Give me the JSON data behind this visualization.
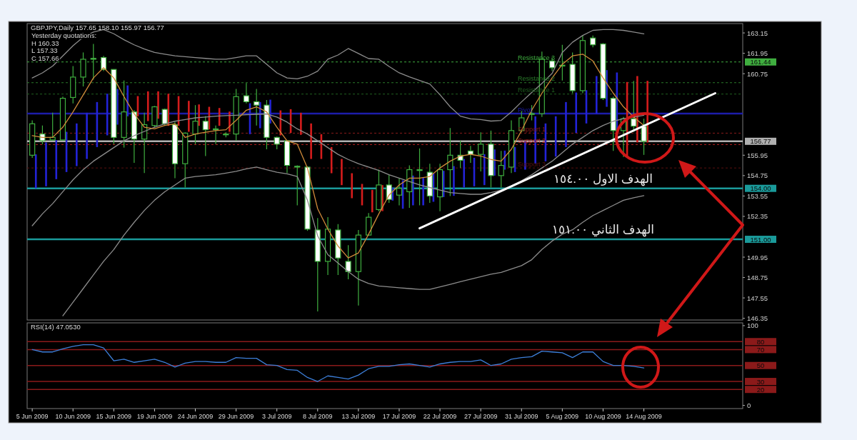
{
  "chart_data": [
    {
      "type": "candlestick",
      "title": "GBPJPY,Daily 157.65 158.10 155.97 156.77",
      "color": "#3fae3f",
      "categories": [
        "5 Jun 2009",
        null,
        null,
        null,
        "10 Jun 2009",
        null,
        null,
        null,
        "15 Jun 2009",
        null,
        null,
        null,
        "19 Jun 2009",
        null,
        null,
        null,
        "24 Jun 2009",
        null,
        null,
        null,
        "29 Jun 2009",
        null,
        null,
        null,
        "3 Jul 2009",
        null,
        null,
        null,
        "8 Jul 2009",
        null,
        null,
        null,
        "13 Jul 2009",
        null,
        null,
        null,
        "17 Jul 2009",
        null,
        null,
        null,
        "22 Jul 2009",
        null,
        null,
        null,
        "27 Jul 2009",
        null,
        null,
        null,
        "31 Jul 2009",
        null,
        null,
        null,
        "5 Aug 2009",
        null,
        null,
        null,
        "10 Aug 2009",
        null,
        null,
        null,
        "14 Aug 2009",
        null,
        null,
        null,
        null,
        null,
        null,
        null,
        null,
        null
      ],
      "ohlc": [
        [
          155.95,
          158.0,
          155.8,
          157.8
        ],
        [
          157.2,
          157.7,
          156.6,
          156.8
        ],
        [
          156.85,
          158.45,
          156.8,
          157.0
        ],
        [
          156.85,
          159.4,
          156.8,
          159.3
        ],
        [
          159.35,
          161.2,
          159.0,
          160.55
        ],
        [
          160.55,
          162.0,
          160.0,
          161.6
        ],
        [
          161.65,
          162.5,
          160.4,
          161.6
        ],
        [
          161.7,
          161.8,
          160.9,
          161.0
        ],
        [
          161.0,
          161.0,
          156.6,
          157.0
        ],
        [
          157.0,
          160.35,
          156.4,
          158.5
        ],
        [
          158.5,
          158.6,
          155.5,
          156.9
        ],
        [
          156.9,
          158.45,
          154.9,
          157.75
        ],
        [
          157.7,
          158.85,
          157.6,
          158.8
        ],
        [
          158.65,
          158.7,
          157.7,
          157.8
        ],
        [
          157.75,
          157.9,
          154.6,
          155.45
        ],
        [
          155.45,
          157.3,
          154.05,
          157.25
        ],
        [
          157.2,
          158.9,
          156.6,
          157.95
        ],
        [
          157.95,
          158.25,
          155.9,
          157.45
        ],
        [
          157.45,
          157.7,
          156.6,
          157.5
        ],
        [
          157.2,
          157.3,
          157.0,
          157.15
        ],
        [
          157.2,
          159.85,
          156.8,
          159.4
        ],
        [
          159.45,
          160.2,
          159.0,
          159.1
        ],
        [
          159.1,
          159.85,
          157.7,
          158.9
        ],
        [
          158.9,
          159.2,
          156.3,
          157.0
        ],
        [
          157.0,
          157.05,
          156.3,
          156.6
        ],
        [
          156.8,
          156.85,
          154.9,
          155.35
        ],
        [
          155.3,
          155.35,
          153.0,
          155.25
        ],
        [
          155.25,
          155.3,
          151.5,
          151.6
        ],
        [
          151.55,
          152.25,
          146.75,
          149.7
        ],
        [
          149.7,
          152.3,
          148.9,
          151.6
        ],
        [
          151.55,
          151.9,
          148.9,
          149.9
        ],
        [
          149.7,
          150.65,
          148.65,
          149.1
        ],
        [
          149.1,
          151.55,
          147.1,
          151.25
        ],
        [
          151.25,
          152.55,
          151.2,
          152.3
        ],
        [
          152.75,
          155.1,
          152.65,
          154.2
        ],
        [
          154.2,
          154.8,
          153.15,
          153.35
        ],
        [
          153.6,
          154.6,
          153.0,
          154.0
        ],
        [
          153.8,
          155.35,
          152.85,
          155.1
        ],
        [
          155.1,
          156.35,
          153.0,
          155.05
        ],
        [
          154.95,
          155.45,
          153.15,
          153.55
        ],
        [
          153.5,
          155.45,
          152.65,
          155.1
        ],
        [
          155.1,
          157.55,
          153.55,
          155.95
        ],
        [
          155.95,
          156.8,
          155.2,
          155.65
        ],
        [
          156.2,
          156.5,
          155.5,
          156.0
        ],
        [
          156.0,
          157.3,
          155.0,
          156.6
        ],
        [
          156.6,
          157.4,
          154.05,
          154.75
        ],
        [
          154.75,
          156.2,
          154.05,
          155.35
        ],
        [
          155.25,
          158.0,
          154.9,
          157.4
        ],
        [
          157.4,
          158.55,
          157.3,
          158.15
        ],
        [
          158.35,
          158.9,
          158.0,
          158.4
        ],
        [
          158.4,
          162.05,
          158.2,
          161.6
        ],
        [
          161.5,
          161.7,
          160.9,
          161.1
        ],
        [
          161.25,
          162.45,
          160.35,
          161.2
        ],
        [
          161.3,
          162.0,
          159.6,
          159.75
        ],
        [
          159.75,
          163.0,
          159.6,
          162.7
        ],
        [
          162.85,
          163.0,
          162.3,
          162.45
        ],
        [
          162.5,
          162.55,
          159.2,
          159.3
        ],
        [
          159.3,
          159.4,
          156.2,
          157.4
        ],
        [
          157.4,
          158.2,
          155.85,
          158.1
        ],
        [
          158.1,
          160.33,
          157.33,
          157.66
        ],
        [
          157.65,
          158.1,
          155.97,
          156.77
        ],
        null,
        null,
        null,
        null,
        null,
        null,
        null,
        null,
        null
      ],
      "ylim": [
        146.25,
        163.7
      ],
      "yticks": [
        146.35,
        147.55,
        148.75,
        149.95,
        152.35,
        153.55,
        154.75,
        155.95,
        160.75,
        161.95,
        163.15
      ],
      "tick_labels": "y",
      "series": [
        {
          "type": "bar",
          "base": [
            154.0,
            154.12,
            154.54,
            154.96,
            155.31,
            155.73,
            156.43,
            157.12,
            157.75,
            158.24,
            158.24,
            157.96,
            158.1,
            157.68,
            157.68,
            157.33,
            157.68,
            157.47,
            157.68,
            157.33,
            null,
            157.19,
            157.54,
            157.82,
            157.12,
            157.26,
            157.15,
            155.73,
            155.73,
            154.89,
            154.19,
            153.42,
            153.0,
            152.59,
            152.66,
            153.28,
            152.8,
            153.0,
            153.0,
            153.21,
            153.49,
            153.56,
            154.05,
            154.12,
            154.19,
            154.75,
            155.1,
            154.96,
            155.1,
            155.45,
            155.59,
            155.87,
            156.43,
            157.26,
            157.82,
            158.38,
            158.8,
            157.26,
            155.87,
            156.7,
            156.7,
            null,
            null,
            null,
            null,
            null,
            null,
            null,
            null,
            null
          ],
          "values": [
            2.0,
            2.58,
            2.3,
            2.37,
            2.51,
            2.72,
            2.65,
            2.45,
            2.1,
            1.82,
            1.19,
            1.75,
            1.61,
            1.89,
            1.75,
            1.82,
            1.26,
            1.33,
            1.05,
            1.19,
            null,
            1.82,
            1.54,
            1.4,
            1.47,
            1.4,
            1.3,
            2.09,
            1.46,
            1.54,
            1.54,
            1.47,
            1.26,
            1.32,
            1.53,
            0.77,
            1.67,
            1.75,
            1.61,
            1.68,
            1.54,
            1.75,
            1.68,
            1.68,
            1.82,
            1.54,
            1.12,
            1.47,
            1.67,
            2.79,
            2.23,
            2.37,
            2.65,
            2.38,
            1.96,
            2.23,
            2.16,
            3.56,
            4.39,
            3.91,
            3.63,
            null,
            null,
            null,
            null,
            null,
            null,
            null,
            null,
            null
          ],
          "colors": [
            "#2323d6",
            "#2323d6",
            "#2323d6",
            "#2323d6",
            "#2323d6",
            "#2323d6",
            "#2323d6",
            "#2323d6",
            "#2323d6",
            "#2323d6",
            "#d41c1c",
            "#d41c1c",
            "#d41c1c",
            "#d41c1c",
            "#d41c1c",
            "#d41c1c",
            "#d41c1c",
            "#d41c1c",
            "#d41c1c",
            "#d41c1c",
            null,
            "#2323d6",
            "#2323d6",
            "#2323d6",
            "#d41c1c",
            "#d41c1c",
            "#d41c1c",
            "#d41c1c",
            "#d41c1c",
            "#d41c1c",
            "#d41c1c",
            "#d41c1c",
            "#d41c1c",
            "#d41c1c",
            "#d41c1c",
            "#2323d6",
            "#2323d6",
            "#2323d6",
            "#2323d6",
            "#2323d6",
            "#2323d6",
            "#2323d6",
            "#2323d6",
            "#2323d6",
            "#2323d6",
            "#2323d6",
            "#2323d6",
            "#2323d6",
            "#2323d6",
            "#2323d6",
            "#2323d6",
            "#2323d6",
            "#2323d6",
            "#2323d6",
            "#2323d6",
            "#2323d6",
            "#2323d6",
            "#2323d6",
            "#d41c1c",
            "#d41c1c",
            "#d41c1c",
            null,
            null,
            null,
            null,
            null,
            null,
            null,
            null,
            null
          ]
        },
        {
          "type": "line",
          "color": "#8c8c8c",
          "values": [
            160.5,
            160.8,
            161.2,
            161.8,
            162.4,
            162.9,
            163.2,
            163.35,
            163.1,
            162.75,
            162.45,
            162.2,
            162.0,
            161.9,
            161.8,
            161.75,
            161.7,
            161.65,
            161.6,
            161.6,
            161.7,
            161.8,
            161.8,
            161.3,
            160.8,
            160.5,
            160.45,
            160.6,
            160.9,
            161.6,
            161.85,
            162.23,
            161.94,
            161.64,
            161.6,
            161.18,
            160.8,
            160.56,
            160.35,
            160.14,
            159.51,
            158.8,
            158.25,
            158.09,
            158.05,
            157.96,
            158.0,
            158.5,
            159.09,
            159.64,
            160.18,
            160.77,
            162.0,
            162.6,
            163.0,
            163.3,
            163.35,
            163.35,
            163.3,
            163.2,
            163.1,
            null,
            null,
            null,
            null,
            null,
            null,
            null,
            null,
            null
          ]
        },
        {
          "type": "line",
          "color": "#8c8c8c",
          "values": [
            151.8,
            152.5,
            153.1,
            153.8,
            154.5,
            155.1,
            155.6,
            156.0,
            156.4,
            156.8,
            157.1,
            157.35,
            157.6,
            157.8,
            157.95,
            158.05,
            158.15,
            158.2,
            158.25,
            158.28,
            158.3,
            158.33,
            158.36,
            158.38,
            158.2,
            157.9,
            157.5,
            157.2,
            156.8,
            156.4,
            156.0,
            155.7,
            155.45,
            155.25,
            155.05,
            154.8,
            154.6,
            154.4,
            154.2,
            154.05,
            153.9,
            153.75,
            153.7,
            153.65,
            153.65,
            153.75,
            153.9,
            154.15,
            154.45,
            154.8,
            155.2,
            155.6,
            156.1,
            156.6,
            157.0,
            157.4,
            157.7,
            157.95,
            158.1,
            158.2,
            158.3,
            null,
            null,
            null,
            null,
            null,
            null,
            null,
            null,
            null
          ]
        },
        {
          "type": "line",
          "color": "#8c8c8c",
          "values": [
            null,
            null,
            null,
            146.5,
            147.3,
            148.1,
            148.9,
            149.7,
            150.4,
            151.25,
            152.0,
            152.7,
            153.3,
            153.8,
            154.2,
            154.6,
            154.7,
            154.75,
            154.8,
            154.9,
            155.0,
            155.15,
            155.25,
            155.1,
            154.95,
            154.85,
            154.7,
            153.3,
            151.2,
            150.1,
            149.6,
            149.1,
            148.65,
            148.4,
            148.25,
            148.2,
            148.15,
            148.1,
            148.05,
            148.05,
            148.2,
            148.35,
            148.5,
            148.65,
            148.8,
            148.95,
            149.05,
            149.25,
            149.45,
            149.8,
            150.4,
            150.9,
            151.3,
            151.56,
            152.0,
            152.4,
            152.7,
            153.0,
            153.3,
            153.45,
            153.57,
            null,
            null,
            null,
            null,
            null,
            null,
            null,
            null,
            null
          ]
        },
        {
          "type": "line",
          "color": "#d08a3a",
          "values": [
            157.1,
            157.0,
            157.0,
            157.6,
            158.5,
            159.5,
            160.5,
            161.1,
            160.5,
            159.4,
            158.4,
            157.6,
            157.5,
            157.7,
            157.8,
            157.0,
            157.2,
            157.3,
            157.4,
            157.45,
            158.0,
            158.6,
            158.8,
            158.5,
            157.6,
            156.8,
            156.6,
            155.2,
            152.8,
            151.6,
            150.6,
            149.9,
            150.2,
            151.3,
            152.5,
            153.6,
            154.2,
            154.6,
            154.6,
            154.7,
            155.2,
            155.6,
            155.9,
            156.0,
            155.9,
            155.7,
            155.6,
            156.3,
            157.4,
            158.6,
            159.6,
            160.5,
            161.3,
            161.8,
            161.9,
            161.5,
            160.5,
            159.6,
            158.8,
            158.2,
            157.7,
            null,
            null,
            null,
            null,
            null,
            null,
            null,
            null,
            null
          ]
        },
        {
          "type": "line",
          "color": "#ffffff",
          "values": [
            null,
            null,
            null,
            null,
            null,
            null,
            null,
            null,
            null,
            null,
            null,
            null,
            null,
            null,
            null,
            null,
            null,
            null,
            null,
            null,
            null,
            null,
            null,
            null,
            null,
            null,
            null,
            null,
            null,
            null,
            null,
            null,
            null,
            null,
            null,
            null,
            null,
            null,
            151.65,
            null,
            null,
            null,
            null,
            null,
            null,
            null,
            null,
            null,
            null,
            null,
            null,
            null,
            null,
            null,
            null,
            null,
            null,
            null,
            null,
            null,
            null,
            null,
            null,
            null,
            null,
            null,
            null,
            159.6,
            null,
            null
          ]
        }
      ],
      "ref_lines": [
        {
          "axis": "y",
          "value": 161.44,
          "label": "161.44",
          "color": "#3fae3f",
          "line_style": "dashed"
        },
        {
          "axis": "y",
          "value": 160.22,
          "label": null,
          "color": "#2a7a2a",
          "line_style": "dashed"
        },
        {
          "axis": "y",
          "value": 159.55,
          "label": null,
          "color": "#1f5f1f",
          "line_style": "dashed"
        },
        {
          "axis": "y",
          "value": 158.4,
          "label": null,
          "color": "#1c1caa",
          "line_style": "solid"
        },
        {
          "axis": "y",
          "value": 157.25,
          "label": null,
          "color": "#8a1a1a",
          "line_style": "dashed"
        },
        {
          "axis": "y",
          "value": 156.77,
          "label": "156.77",
          "color": "#b0b0b0",
          "line_style": "solid"
        },
        {
          "axis": "y",
          "value": 156.58,
          "label": null,
          "color": "#c02020",
          "line_style": "dashed"
        },
        {
          "axis": "y",
          "value": 155.2,
          "label": null,
          "color": "#5a1010",
          "line_style": "dashed"
        },
        {
          "axis": "y",
          "value": 154.0,
          "label": "154.00",
          "color": "#1a9a9a",
          "line_style": "solid"
        },
        {
          "axis": "y",
          "value": 151.0,
          "label": "151.00",
          "color": "#1a9a9a",
          "line_style": "solid"
        }
      ],
      "annotations": [
        "Yesterday quotations:",
        "H 160.33",
        "L 157.33",
        "C 157.66",
        {
          "text": "Resistance 3",
          "y": 161.44
        },
        {
          "text": "Resistance 2",
          "y": 160.22
        },
        {
          "text": "Resistance 1",
          "y": 159.55
        },
        {
          "text": "Pivot",
          "y": 158.4
        },
        {
          "text": "Support 1",
          "y": 157.25
        },
        {
          "text": "Support 2",
          "y": 156.58
        },
        {
          "text": "Support 3",
          "y": 155.2
        },
        {
          "text": "الهدف الاول ١٥٤.٠٠",
          "x": "10 Aug 2009",
          "y": 154.0
        },
        {
          "text": "الهدف الثاني ١٥١.٠٠",
          "x": "10 Aug 2009",
          "y": 151.0
        }
      ]
    },
    {
      "type": "line",
      "title": "RSI(14) 47.0530",
      "categories": [
        "5 Jun 2009",
        null,
        null,
        null,
        "10 Jun 2009",
        null,
        null,
        null,
        "15 Jun 2009",
        null,
        null,
        null,
        "19 Jun 2009",
        null,
        null,
        null,
        "24 Jun 2009",
        null,
        null,
        null,
        "29 Jun 2009",
        null,
        null,
        null,
        "3 Jul 2009",
        null,
        null,
        null,
        "8 Jul 2009",
        null,
        null,
        null,
        "13 Jul 2009",
        null,
        null,
        null,
        "17 Jul 2009",
        null,
        null,
        null,
        "22 Jul 2009",
        null,
        null,
        null,
        "27 Jul 2009",
        null,
        null,
        null,
        "31 Jul 2009",
        null,
        null,
        null,
        "5 Aug 2009",
        null,
        null,
        null,
        "10 Aug 2009",
        null,
        null,
        null,
        "14 Aug 2009",
        null,
        null,
        null,
        null,
        null,
        null,
        null,
        null,
        null
      ],
      "ylim": [
        -4,
        103.5
      ],
      "yticks": [
        0,
        100
      ],
      "series": [
        {
          "color": "#3d7fd9",
          "values": [
            70,
            67,
            67,
            71,
            74,
            76,
            76,
            72,
            56,
            58,
            54,
            56,
            58,
            54,
            48,
            53,
            55,
            55,
            54,
            54,
            60,
            59,
            59,
            51,
            50,
            45,
            44,
            35,
            30,
            37,
            35,
            33,
            38,
            46,
            49,
            49,
            51,
            52,
            50,
            48,
            52,
            54,
            55,
            55,
            57,
            50,
            52,
            58,
            60,
            61,
            68,
            67,
            66,
            60,
            67,
            67,
            55,
            50,
            50,
            49,
            47,
            null,
            null,
            null,
            null,
            null,
            null,
            null,
            null,
            null
          ]
        }
      ],
      "ref_lines": [
        {
          "axis": "y",
          "value": 80,
          "label": "80",
          "color": "#8b1a1a"
        },
        {
          "axis": "y",
          "value": 70,
          "label": "70",
          "color": "#8b1a1a"
        },
        {
          "axis": "y",
          "value": 50,
          "label": "50",
          "color": "#8b1a1a"
        },
        {
          "axis": "y",
          "value": 30,
          "label": "30",
          "color": "#8b1a1a"
        },
        {
          "axis": "y",
          "value": 20,
          "label": "20",
          "color": "#8b1a1a"
        }
      ]
    }
  ]
}
